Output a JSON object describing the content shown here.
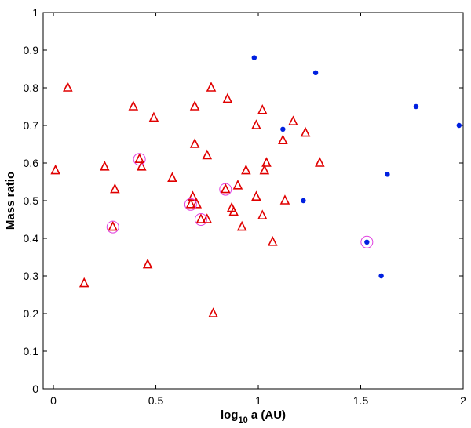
{
  "chart_data": {
    "type": "scatter",
    "xlabel_main": "log",
    "xlabel_sub": "10",
    "xlabel_rest": " a (AU)",
    "ylabel": "Mass ratio",
    "xlim": [
      -0.05,
      2.0
    ],
    "ylim": [
      0,
      1
    ],
    "x_ticks": [
      0,
      0.5,
      1,
      1.5,
      2
    ],
    "x_tick_labels": [
      "0",
      "0.5",
      "1",
      "1.5",
      "2"
    ],
    "y_ticks": [
      0,
      0.1,
      0.2,
      0.3,
      0.4,
      0.5,
      0.6,
      0.7,
      0.8,
      0.9,
      1
    ],
    "y_tick_labels": [
      "0",
      "0.1",
      "0.2",
      "0.3",
      "0.4",
      "0.5",
      "0.6",
      "0.7",
      "0.8",
      "0.9",
      "1"
    ],
    "grid": false,
    "colors": {
      "triangle": "#e00000",
      "dot": "#0020e0",
      "circle": "#e040e0"
    },
    "series": [
      {
        "marker": "triangle",
        "points": [
          [
            0.01,
            0.58
          ],
          [
            0.07,
            0.8
          ],
          [
            0.15,
            0.28
          ],
          [
            0.25,
            0.59
          ],
          [
            0.29,
            0.43
          ],
          [
            0.3,
            0.53
          ],
          [
            0.39,
            0.75
          ],
          [
            0.42,
            0.61
          ],
          [
            0.43,
            0.59
          ],
          [
            0.46,
            0.33
          ],
          [
            0.49,
            0.72
          ],
          [
            0.58,
            0.56
          ],
          [
            0.67,
            0.49
          ],
          [
            0.68,
            0.51
          ],
          [
            0.69,
            0.75
          ],
          [
            0.69,
            0.65
          ],
          [
            0.7,
            0.49
          ],
          [
            0.72,
            0.45
          ],
          [
            0.75,
            0.62
          ],
          [
            0.75,
            0.45
          ],
          [
            0.77,
            0.8
          ],
          [
            0.78,
            0.2
          ],
          [
            0.84,
            0.53
          ],
          [
            0.85,
            0.77
          ],
          [
            0.87,
            0.48
          ],
          [
            0.88,
            0.47
          ],
          [
            0.9,
            0.54
          ],
          [
            0.92,
            0.43
          ],
          [
            0.94,
            0.58
          ],
          [
            0.99,
            0.7
          ],
          [
            0.99,
            0.51
          ],
          [
            1.02,
            0.74
          ],
          [
            1.02,
            0.46
          ],
          [
            1.03,
            0.58
          ],
          [
            1.04,
            0.6
          ],
          [
            1.07,
            0.39
          ],
          [
            1.12,
            0.66
          ],
          [
            1.13,
            0.5
          ],
          [
            1.17,
            0.71
          ],
          [
            1.23,
            0.68
          ],
          [
            1.3,
            0.6
          ]
        ]
      },
      {
        "marker": "dot",
        "points": [
          [
            0.98,
            0.88
          ],
          [
            1.12,
            0.69
          ],
          [
            1.22,
            0.5
          ],
          [
            1.28,
            0.84
          ],
          [
            1.53,
            0.39
          ],
          [
            1.6,
            0.3
          ],
          [
            1.63,
            0.57
          ],
          [
            1.77,
            0.75
          ],
          [
            1.98,
            0.7
          ]
        ]
      },
      {
        "marker": "circle",
        "points": [
          [
            0.29,
            0.43
          ],
          [
            0.42,
            0.61
          ],
          [
            0.67,
            0.49
          ],
          [
            0.72,
            0.45
          ],
          [
            0.84,
            0.53
          ],
          [
            1.53,
            0.39
          ]
        ]
      }
    ]
  }
}
